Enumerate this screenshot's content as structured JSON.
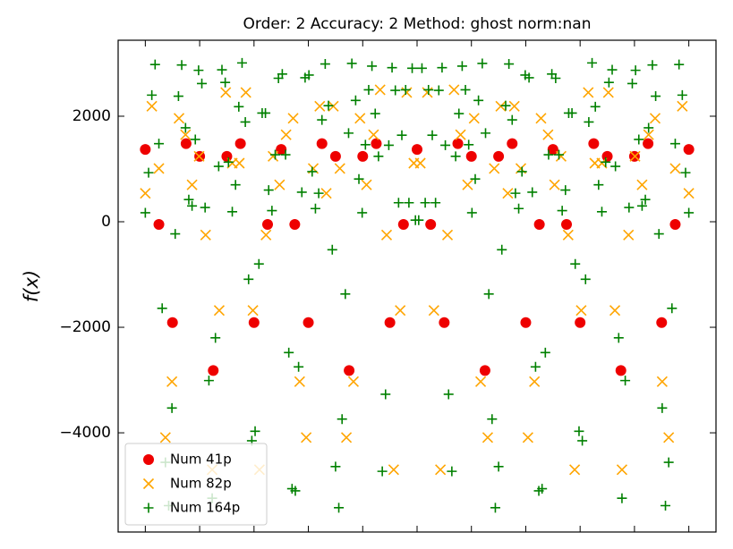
{
  "chart_data": {
    "type": "scatter",
    "title": "Order: 2 Accuracy: 2 Method: ghost norm:nan",
    "ylabel": "f(x)",
    "xlim": [
      -0.05,
      1.05
    ],
    "xticks": [
      0,
      0.1,
      0.2,
      0.3,
      0.4,
      0.5,
      0.6,
      0.7,
      0.8,
      0.9,
      1
    ],
    "ylim": [
      -5880,
      3440
    ],
    "yticks": [
      {
        "value": -4000,
        "label": "−4000"
      },
      {
        "value": -2000,
        "label": "−2000"
      },
      0,
      2000
    ],
    "grid": false,
    "legend": "lower left",
    "series": [
      {
        "name": "Num 41p",
        "color": "#ee0000",
        "marker": "o",
        "x": [
          0,
          0.025,
          0.05,
          0.075,
          0.1,
          0.125,
          0.15,
          0.175,
          0.2,
          0.225,
          0.25,
          0.275,
          0.3,
          0.325,
          0.35,
          0.375,
          0.4,
          0.425,
          0.45,
          0.475,
          0.5,
          0.525,
          0.55,
          0.575,
          0.6,
          0.625,
          0.65,
          0.675,
          0.7,
          0.725,
          0.75,
          0.775,
          0.8,
          0.825,
          0.85,
          0.875,
          0.9,
          0.925,
          0.95,
          0.975,
          1
        ],
        "values": [
          1370,
          -50,
          -1910,
          1480,
          1240,
          -2820,
          1240,
          1480,
          -1910,
          -50,
          1370,
          -50,
          -1910,
          1480,
          1240,
          -2820,
          1240,
          1480,
          -1910,
          -50,
          1370,
          -50,
          -1910,
          1480,
          1240,
          -2820,
          1240,
          1480,
          -1910,
          -50,
          1370,
          -50,
          -1910,
          1480,
          1240,
          -2820,
          1240,
          1480,
          -1910,
          -50,
          1370
        ]
      },
      {
        "name": "Num 82p",
        "color": "#ffa500",
        "marker": "x",
        "x": [
          0,
          0.012,
          0.025,
          0.037,
          0.049,
          0.062,
          0.074,
          0.086,
          0.099,
          0.111,
          0.123,
          0.136,
          0.148,
          0.16,
          0.173,
          0.185,
          0.198,
          0.21,
          0.222,
          0.235,
          0.247,
          0.259,
          0.272,
          0.284,
          0.296,
          0.309,
          0.321,
          0.333,
          0.346,
          0.358,
          0.37,
          0.383,
          0.395,
          0.407,
          0.42,
          0.432,
          0.444,
          0.457,
          0.469,
          0.481,
          0.494,
          0.506,
          0.519,
          0.531,
          0.543,
          0.556,
          0.568,
          0.58,
          0.593,
          0.605,
          0.617,
          0.63,
          0.642,
          0.654,
          0.667,
          0.679,
          0.691,
          0.704,
          0.716,
          0.728,
          0.741,
          0.753,
          0.765,
          0.778,
          0.79,
          0.802,
          0.815,
          0.827,
          0.84,
          0.852,
          0.864,
          0.877,
          0.889,
          0.901,
          0.914,
          0.926,
          0.938,
          0.951,
          0.963,
          0.975,
          0.988,
          1
        ],
        "values": [
          540,
          2190,
          1010,
          -4090,
          -3030,
          1960,
          1650,
          700,
          1240,
          -250,
          -4700,
          -1680,
          2450,
          1110,
          1110,
          2450,
          -1680,
          -4700,
          -250,
          1240,
          700,
          1650,
          1960,
          -3030,
          -4090,
          1010,
          2190,
          540,
          2190,
          1010,
          -4090,
          -3030,
          1960,
          700,
          1650,
          2500,
          -250,
          -4700,
          -1680,
          2450,
          1110,
          1110,
          2450,
          -1680,
          -4700,
          -250,
          2500,
          1650,
          700,
          1960,
          -3030,
          -4090,
          1010,
          2190,
          540,
          2190,
          1010,
          -4090,
          -3030,
          1960,
          1650,
          700,
          1240,
          -250,
          -4700,
          -1680,
          2450,
          1110,
          1110,
          2450,
          -1680,
          -4700,
          -250,
          1240,
          700,
          1650,
          1960,
          -3030,
          -4090,
          1010,
          2190,
          540
        ]
      },
      {
        "name": "Num 164p",
        "color": "#008000",
        "marker": "+",
        "x": [
          0,
          0.006,
          0.012,
          0.018,
          0.025,
          0.031,
          0.037,
          0.043,
          0.049,
          0.055,
          0.061,
          0.067,
          0.074,
          0.08,
          0.086,
          0.092,
          0.098,
          0.104,
          0.11,
          0.117,
          0.123,
          0.129,
          0.135,
          0.141,
          0.147,
          0.153,
          0.16,
          0.166,
          0.172,
          0.178,
          0.184,
          0.19,
          0.196,
          0.202,
          0.209,
          0.215,
          0.221,
          0.227,
          0.233,
          0.239,
          0.245,
          0.252,
          0.258,
          0.264,
          0.27,
          0.276,
          0.282,
          0.288,
          0.294,
          0.301,
          0.307,
          0.313,
          0.319,
          0.325,
          0.331,
          0.337,
          0.344,
          0.35,
          0.356,
          0.362,
          0.368,
          0.374,
          0.38,
          0.387,
          0.393,
          0.399,
          0.405,
          0.411,
          0.417,
          0.423,
          0.429,
          0.436,
          0.442,
          0.448,
          0.454,
          0.46,
          0.466,
          0.472,
          0.479,
          0.485,
          0.491,
          0.497,
          0.503,
          0.509,
          0.515,
          0.521,
          0.528,
          0.534,
          0.54,
          0.546,
          0.552,
          0.558,
          0.564,
          0.571,
          0.577,
          0.583,
          0.589,
          0.595,
          0.601,
          0.607,
          0.613,
          0.62,
          0.626,
          0.632,
          0.638,
          0.644,
          0.65,
          0.656,
          0.663,
          0.669,
          0.675,
          0.681,
          0.687,
          0.693,
          0.699,
          0.706,
          0.712,
          0.718,
          0.724,
          0.73,
          0.736,
          0.742,
          0.748,
          0.755,
          0.761,
          0.767,
          0.773,
          0.779,
          0.785,
          0.791,
          0.798,
          0.804,
          0.81,
          0.816,
          0.822,
          0.828,
          0.834,
          0.84,
          0.847,
          0.853,
          0.859,
          0.865,
          0.871,
          0.877,
          0.883,
          0.89,
          0.896,
          0.902,
          0.908,
          0.914,
          0.92,
          0.926,
          0.933,
          0.939,
          0.945,
          0.951,
          0.957,
          0.963,
          0.969,
          0.975,
          0.982,
          0.988,
          0.994,
          1
        ],
        "values": [
          170,
          930,
          2400,
          2980,
          1480,
          -1640,
          -4560,
          -5380,
          -3530,
          -230,
          2380,
          2970,
          1780,
          420,
          300,
          1560,
          2870,
          2620,
          270,
          -3010,
          -5240,
          -2200,
          1050,
          2880,
          2640,
          1130,
          190,
          700,
          2180,
          3010,
          1890,
          -1090,
          -4150,
          -3970,
          -800,
          2060,
          2060,
          600,
          210,
          1270,
          2720,
          2800,
          1270,
          -2480,
          -5060,
          -5100,
          -2750,
          560,
          2730,
          2780,
          950,
          250,
          540,
          1930,
          2990,
          2200,
          -530,
          -4640,
          -5420,
          -3740,
          -1370,
          1680,
          3000,
          2300,
          810,
          170,
          1460,
          2500,
          2950,
          2050,
          1240,
          -4730,
          -3270,
          1450,
          2920,
          2490,
          360,
          1640,
          2500,
          360,
          2910,
          30,
          30,
          2910,
          360,
          2500,
          1640,
          360,
          2490,
          2920,
          1450,
          -3270,
          -4730,
          1240,
          2050,
          2950,
          2500,
          1460,
          170,
          810,
          2300,
          3000,
          1680,
          -1370,
          -3740,
          -5420,
          -4640,
          -530,
          2200,
          2990,
          1930,
          540,
          250,
          950,
          2780,
          2730,
          560,
          -2750,
          -5100,
          -5060,
          -2480,
          1270,
          2800,
          2720,
          1270,
          210,
          600,
          2060,
          2060,
          -800,
          -3970,
          -4150,
          -1090,
          1890,
          3010,
          2180,
          700,
          190,
          1130,
          2640,
          2880,
          1050,
          -2200,
          -5240,
          -3010,
          270,
          2620,
          2870,
          1560,
          300,
          420,
          1780,
          2970,
          2380,
          -230,
          -3530,
          -5380,
          -4560,
          -1640,
          1480,
          2980,
          2400,
          930,
          170
        ]
      }
    ]
  }
}
